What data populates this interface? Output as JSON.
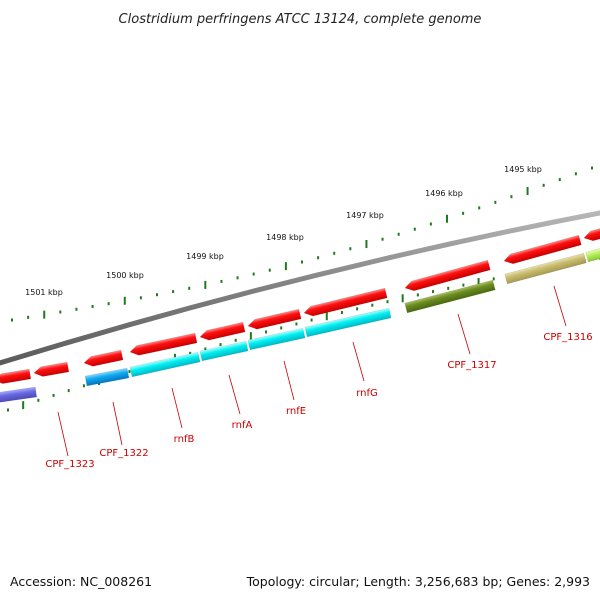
{
  "title": "Clostridium perfringens ATCC 13124, complete genome",
  "footer": {
    "accession": "Accession: NC_008261",
    "summary": "Topology: circular; Length: 3,256,683 bp; Genes: 2,993"
  },
  "colors": {
    "backbone": "#7a7a7a",
    "tick": "#1f7a1f",
    "label": "#cc0000",
    "cds": "#ee0000",
    "cds_light": "#ff6a6a"
  },
  "scale_labels": [
    {
      "text": "1501 kbp",
      "kb": 1501
    },
    {
      "text": "1500 kbp",
      "kb": 1500
    },
    {
      "text": "1499 kbp",
      "kb": 1499
    },
    {
      "text": "1498 kbp",
      "kb": 1498
    },
    {
      "text": "1497 kbp",
      "kb": 1497
    },
    {
      "text": "1496 kbp",
      "kb": 1496
    },
    {
      "text": "1495 kbp",
      "kb": 1495
    }
  ],
  "gene_labels": [
    {
      "name": "CPF_1323"
    },
    {
      "name": "CPF_1322"
    },
    {
      "name": "rnfB"
    },
    {
      "name": "rnfA"
    },
    {
      "name": "rnfE"
    },
    {
      "name": "rnfG"
    },
    {
      "name": "CPF_1317"
    },
    {
      "name": "CPF_1316"
    }
  ]
}
